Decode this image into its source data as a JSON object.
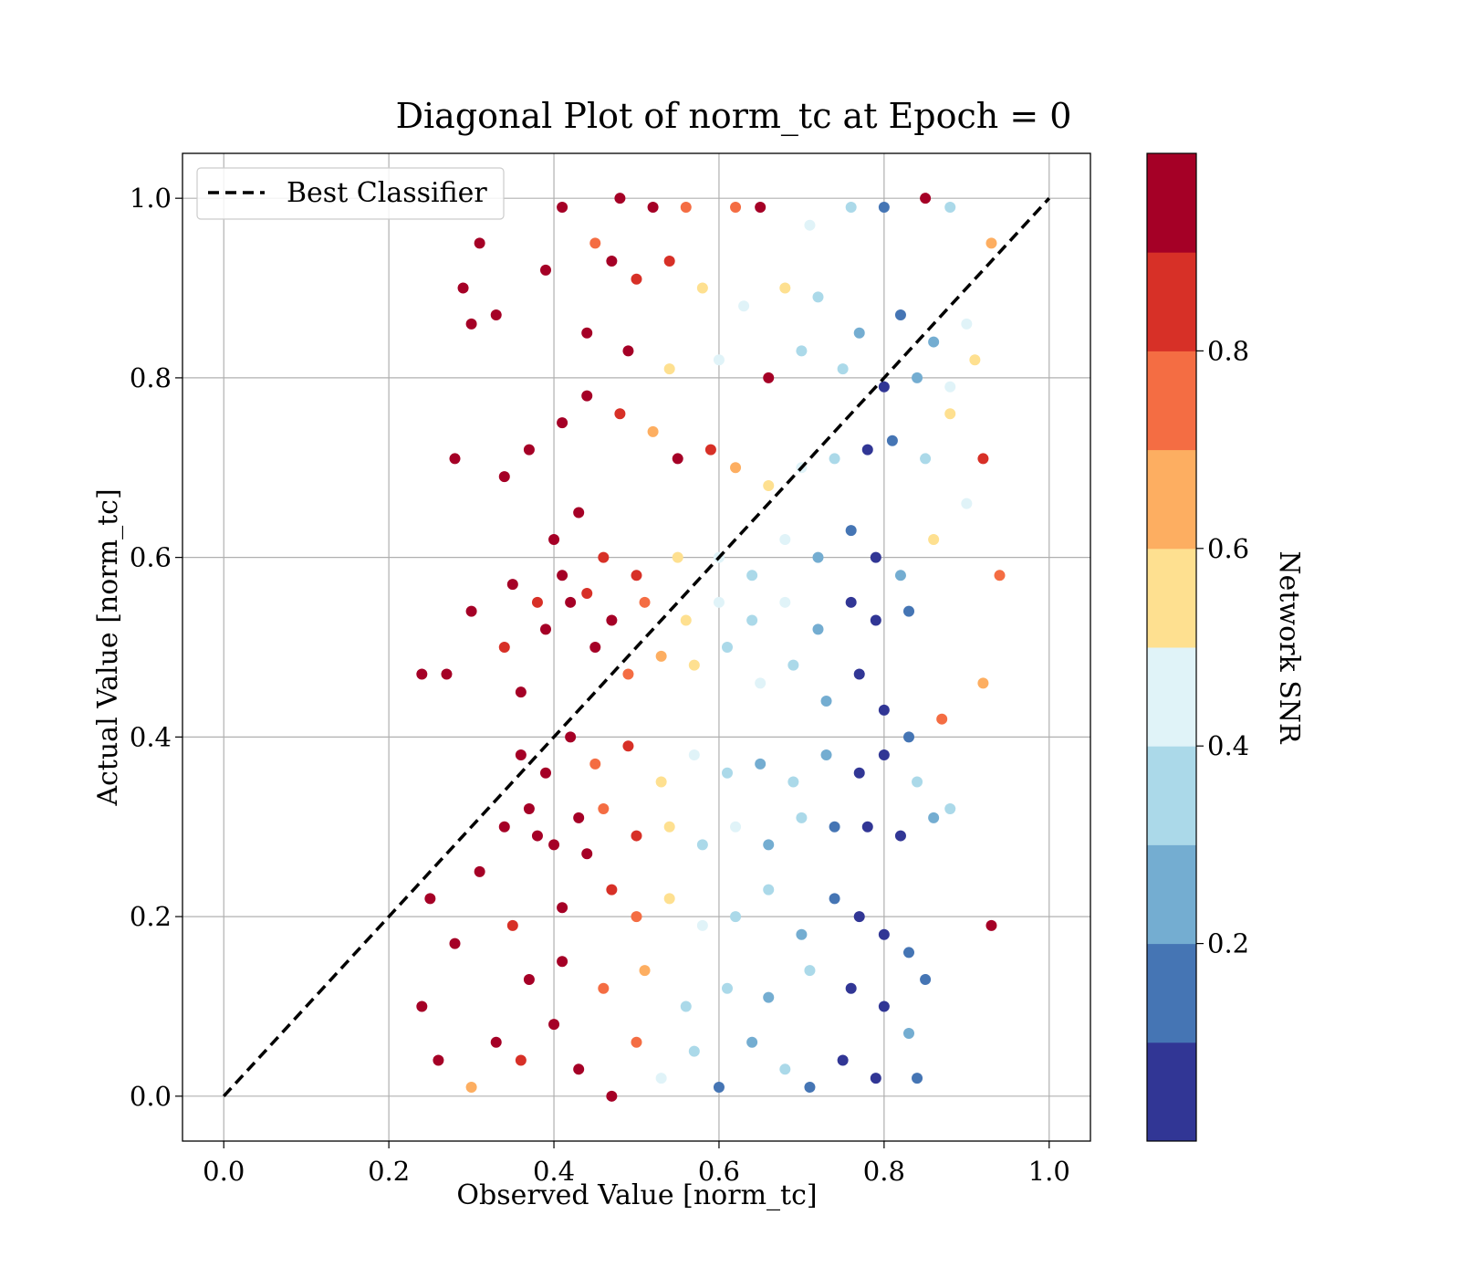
{
  "chart_data": {
    "type": "scatter",
    "title": "Diagonal Plot of norm_tc at Epoch = 0",
    "xlabel": "Observed Value [norm_tc]",
    "ylabel": "Actual Value [norm_tc]",
    "xlim": [
      -0.05,
      1.05
    ],
    "ylim": [
      -0.05,
      1.05
    ],
    "xticks": [
      "0.0",
      "0.2",
      "0.4",
      "0.6",
      "0.8",
      "1.0"
    ],
    "yticks": [
      "0.0",
      "0.2",
      "0.4",
      "0.6",
      "0.8",
      "1.0"
    ],
    "grid": true,
    "legend": {
      "placement": "top-left",
      "entries": [
        "Best Classifier"
      ]
    },
    "reference_line": {
      "name": "Best Classifier",
      "style": "dashed",
      "color": "#000000",
      "x": [
        0.0,
        1.0
      ],
      "y": [
        0.0,
        1.0
      ]
    },
    "colorbar": {
      "label": "Network SNR",
      "range": [
        0.0,
        1.0
      ],
      "ticks": [
        "0.2",
        "0.4",
        "0.6",
        "0.8"
      ],
      "colors": [
        "#313695",
        "#4575b4",
        "#74add1",
        "#abd9e9",
        "#e0f3f8",
        "#fee090",
        "#fdae61",
        "#f46d43",
        "#d73027",
        "#a50026"
      ]
    },
    "points": [
      [
        0.31,
        0.95,
        0.98
      ],
      [
        0.29,
        0.9,
        0.95
      ],
      [
        0.3,
        0.86,
        0.93
      ],
      [
        0.33,
        0.87,
        0.97
      ],
      [
        0.39,
        0.92,
        0.99
      ],
      [
        0.41,
        0.99,
        0.98
      ],
      [
        0.48,
        1.0,
        0.99
      ],
      [
        0.52,
        0.99,
        0.95
      ],
      [
        0.56,
        0.99,
        0.75
      ],
      [
        0.62,
        0.99,
        0.72
      ],
      [
        0.65,
        0.99,
        0.99
      ],
      [
        0.71,
        0.97,
        0.45
      ],
      [
        0.76,
        0.99,
        0.3
      ],
      [
        0.8,
        0.99,
        0.1
      ],
      [
        0.85,
        1.0,
        0.9
      ],
      [
        0.88,
        0.99,
        0.35
      ],
      [
        0.45,
        0.95,
        0.7
      ],
      [
        0.47,
        0.93,
        0.96
      ],
      [
        0.5,
        0.91,
        0.8
      ],
      [
        0.54,
        0.93,
        0.85
      ],
      [
        0.58,
        0.9,
        0.5
      ],
      [
        0.63,
        0.88,
        0.45
      ],
      [
        0.68,
        0.9,
        0.55
      ],
      [
        0.72,
        0.89,
        0.35
      ],
      [
        0.77,
        0.85,
        0.25
      ],
      [
        0.82,
        0.87,
        0.12
      ],
      [
        0.86,
        0.84,
        0.2
      ],
      [
        0.9,
        0.86,
        0.4
      ],
      [
        0.93,
        0.95,
        0.65
      ],
      [
        0.28,
        0.71,
        0.9
      ],
      [
        0.34,
        0.69,
        0.95
      ],
      [
        0.37,
        0.72,
        0.92
      ],
      [
        0.41,
        0.75,
        0.96
      ],
      [
        0.44,
        0.78,
        0.99
      ],
      [
        0.48,
        0.76,
        0.88
      ],
      [
        0.52,
        0.74,
        0.6
      ],
      [
        0.55,
        0.71,
        0.92
      ],
      [
        0.59,
        0.72,
        0.82
      ],
      [
        0.62,
        0.7,
        0.65
      ],
      [
        0.66,
        0.68,
        0.5
      ],
      [
        0.7,
        0.7,
        0.42
      ],
      [
        0.74,
        0.71,
        0.3
      ],
      [
        0.78,
        0.72,
        0.08
      ],
      [
        0.81,
        0.73,
        0.15
      ],
      [
        0.85,
        0.71,
        0.35
      ],
      [
        0.88,
        0.76,
        0.5
      ],
      [
        0.92,
        0.71,
        0.85
      ],
      [
        0.24,
        0.47,
        0.99
      ],
      [
        0.27,
        0.47,
        0.97
      ],
      [
        0.3,
        0.54,
        0.95
      ],
      [
        0.34,
        0.5,
        0.8
      ],
      [
        0.36,
        0.45,
        0.92
      ],
      [
        0.39,
        0.52,
        0.99
      ],
      [
        0.42,
        0.55,
        0.9
      ],
      [
        0.45,
        0.5,
        0.97
      ],
      [
        0.49,
        0.47,
        0.75
      ],
      [
        0.53,
        0.49,
        0.6
      ],
      [
        0.57,
        0.48,
        0.55
      ],
      [
        0.61,
        0.5,
        0.35
      ],
      [
        0.65,
        0.46,
        0.4
      ],
      [
        0.69,
        0.48,
        0.3
      ],
      [
        0.73,
        0.44,
        0.2
      ],
      [
        0.77,
        0.47,
        0.05
      ],
      [
        0.8,
        0.43,
        0.03
      ],
      [
        0.83,
        0.4,
        0.15
      ],
      [
        0.87,
        0.42,
        0.7
      ],
      [
        0.92,
        0.46,
        0.6
      ],
      [
        0.25,
        0.22,
        0.98
      ],
      [
        0.28,
        0.17,
        0.95
      ],
      [
        0.31,
        0.25,
        0.93
      ],
      [
        0.35,
        0.19,
        0.8
      ],
      [
        0.38,
        0.29,
        0.99
      ],
      [
        0.41,
        0.21,
        0.9
      ],
      [
        0.44,
        0.27,
        0.96
      ],
      [
        0.47,
        0.23,
        0.85
      ],
      [
        0.5,
        0.2,
        0.7
      ],
      [
        0.54,
        0.22,
        0.5
      ],
      [
        0.58,
        0.19,
        0.45
      ],
      [
        0.62,
        0.2,
        0.35
      ],
      [
        0.66,
        0.23,
        0.3
      ],
      [
        0.7,
        0.18,
        0.25
      ],
      [
        0.74,
        0.22,
        0.18
      ],
      [
        0.77,
        0.2,
        0.07
      ],
      [
        0.8,
        0.18,
        0.04
      ],
      [
        0.83,
        0.16,
        0.12
      ],
      [
        0.93,
        0.19,
        0.95
      ],
      [
        0.24,
        0.1,
        0.97
      ],
      [
        0.26,
        0.04,
        0.9
      ],
      [
        0.3,
        0.01,
        0.6
      ],
      [
        0.33,
        0.06,
        0.96
      ],
      [
        0.36,
        0.04,
        0.85
      ],
      [
        0.4,
        0.08,
        0.98
      ],
      [
        0.43,
        0.03,
        0.92
      ],
      [
        0.47,
        0.0,
        0.99
      ],
      [
        0.5,
        0.06,
        0.75
      ],
      [
        0.53,
        0.02,
        0.4
      ],
      [
        0.57,
        0.05,
        0.3
      ],
      [
        0.6,
        0.01,
        0.15
      ],
      [
        0.64,
        0.06,
        0.2
      ],
      [
        0.68,
        0.03,
        0.35
      ],
      [
        0.71,
        0.01,
        0.1
      ],
      [
        0.75,
        0.04,
        0.05
      ],
      [
        0.79,
        0.02,
        0.06
      ],
      [
        0.83,
        0.07,
        0.25
      ],
      [
        0.84,
        0.02,
        0.1
      ],
      [
        0.4,
        0.62,
        0.97
      ],
      [
        0.43,
        0.65,
        0.99
      ],
      [
        0.46,
        0.6,
        0.88
      ],
      [
        0.5,
        0.58,
        0.82
      ],
      [
        0.55,
        0.6,
        0.55
      ],
      [
        0.6,
        0.6,
        0.4
      ],
      [
        0.64,
        0.58,
        0.35
      ],
      [
        0.68,
        0.62,
        0.45
      ],
      [
        0.72,
        0.6,
        0.25
      ],
      [
        0.76,
        0.63,
        0.12
      ],
      [
        0.79,
        0.6,
        0.03
      ],
      [
        0.82,
        0.58,
        0.2
      ],
      [
        0.86,
        0.62,
        0.55
      ],
      [
        0.9,
        0.66,
        0.48
      ],
      [
        0.94,
        0.58,
        0.72
      ],
      [
        0.36,
        0.38,
        0.98
      ],
      [
        0.39,
        0.36,
        0.9
      ],
      [
        0.42,
        0.4,
        0.99
      ],
      [
        0.45,
        0.37,
        0.7
      ],
      [
        0.49,
        0.39,
        0.8
      ],
      [
        0.53,
        0.35,
        0.55
      ],
      [
        0.57,
        0.38,
        0.45
      ],
      [
        0.61,
        0.36,
        0.38
      ],
      [
        0.65,
        0.37,
        0.28
      ],
      [
        0.69,
        0.35,
        0.35
      ],
      [
        0.73,
        0.38,
        0.2
      ],
      [
        0.77,
        0.36,
        0.05
      ],
      [
        0.8,
        0.38,
        0.04
      ],
      [
        0.84,
        0.35,
        0.3
      ],
      [
        0.88,
        0.32,
        0.38
      ],
      [
        0.44,
        0.85,
        0.95
      ],
      [
        0.49,
        0.83,
        0.9
      ],
      [
        0.54,
        0.81,
        0.55
      ],
      [
        0.6,
        0.82,
        0.45
      ],
      [
        0.66,
        0.8,
        0.92
      ],
      [
        0.7,
        0.83,
        0.38
      ],
      [
        0.75,
        0.81,
        0.3
      ],
      [
        0.8,
        0.79,
        0.05
      ],
      [
        0.84,
        0.8,
        0.22
      ],
      [
        0.88,
        0.79,
        0.45
      ],
      [
        0.91,
        0.82,
        0.5
      ],
      [
        0.37,
        0.13,
        0.96
      ],
      [
        0.41,
        0.15,
        0.9
      ],
      [
        0.46,
        0.12,
        0.75
      ],
      [
        0.51,
        0.14,
        0.6
      ],
      [
        0.56,
        0.1,
        0.35
      ],
      [
        0.61,
        0.12,
        0.38
      ],
      [
        0.66,
        0.11,
        0.2
      ],
      [
        0.71,
        0.14,
        0.3
      ],
      [
        0.76,
        0.12,
        0.06
      ],
      [
        0.8,
        0.1,
        0.05
      ],
      [
        0.85,
        0.13,
        0.1
      ],
      [
        0.35,
        0.57,
        0.94
      ],
      [
        0.38,
        0.55,
        0.88
      ],
      [
        0.41,
        0.58,
        0.99
      ],
      [
        0.44,
        0.56,
        0.8
      ],
      [
        0.47,
        0.53,
        0.96
      ],
      [
        0.51,
        0.55,
        0.7
      ],
      [
        0.56,
        0.53,
        0.5
      ],
      [
        0.6,
        0.55,
        0.42
      ],
      [
        0.64,
        0.53,
        0.3
      ],
      [
        0.68,
        0.55,
        0.4
      ],
      [
        0.72,
        0.52,
        0.22
      ],
      [
        0.76,
        0.55,
        0.08
      ],
      [
        0.79,
        0.53,
        0.04
      ],
      [
        0.83,
        0.54,
        0.18
      ],
      [
        0.34,
        0.3,
        0.92
      ],
      [
        0.37,
        0.32,
        0.99
      ],
      [
        0.4,
        0.28,
        0.9
      ],
      [
        0.43,
        0.31,
        0.97
      ],
      [
        0.46,
        0.32,
        0.72
      ],
      [
        0.5,
        0.29,
        0.8
      ],
      [
        0.54,
        0.3,
        0.5
      ],
      [
        0.58,
        0.28,
        0.35
      ],
      [
        0.62,
        0.3,
        0.4
      ],
      [
        0.66,
        0.28,
        0.25
      ],
      [
        0.7,
        0.31,
        0.3
      ],
      [
        0.74,
        0.3,
        0.12
      ],
      [
        0.78,
        0.3,
        0.04
      ],
      [
        0.82,
        0.29,
        0.08
      ],
      [
        0.86,
        0.31,
        0.28
      ]
    ]
  }
}
